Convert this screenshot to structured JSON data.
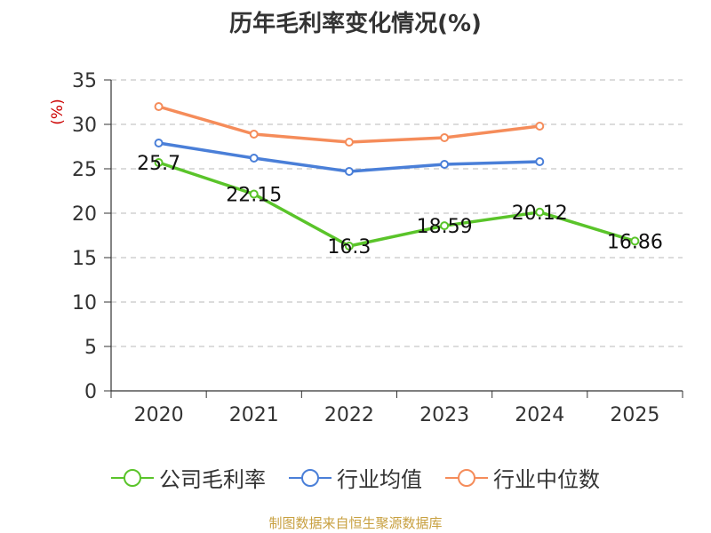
{
  "chart_data": {
    "type": "line",
    "title": "历年毛利率变化情况(%)",
    "ylabel": "(%)",
    "xlabel": "",
    "categories": [
      "2020",
      "2021",
      "2022",
      "2023",
      "2024",
      "2025"
    ],
    "ylim": [
      0,
      35
    ],
    "yticks": [
      0,
      5,
      10,
      15,
      20,
      25,
      30,
      35
    ],
    "grid": true,
    "legend_position": "bottom",
    "series": [
      {
        "name": "公司毛利率",
        "color": "#5ac42a",
        "values": [
          25.7,
          22.15,
          16.3,
          18.59,
          20.12,
          16.86
        ],
        "labels": [
          "25.7",
          "22.15",
          "16.3",
          "18.59",
          "20.12",
          "16.86"
        ]
      },
      {
        "name": "行业均值",
        "color": "#4a7fd8",
        "values": [
          27.9,
          26.2,
          24.7,
          25.5,
          25.8,
          null
        ]
      },
      {
        "name": "行业中位数",
        "color": "#f58c5a",
        "values": [
          32.0,
          28.9,
          28.0,
          28.5,
          29.8,
          null
        ]
      }
    ]
  },
  "footer": {
    "source": "制图数据来自恒生聚源数据库"
  }
}
